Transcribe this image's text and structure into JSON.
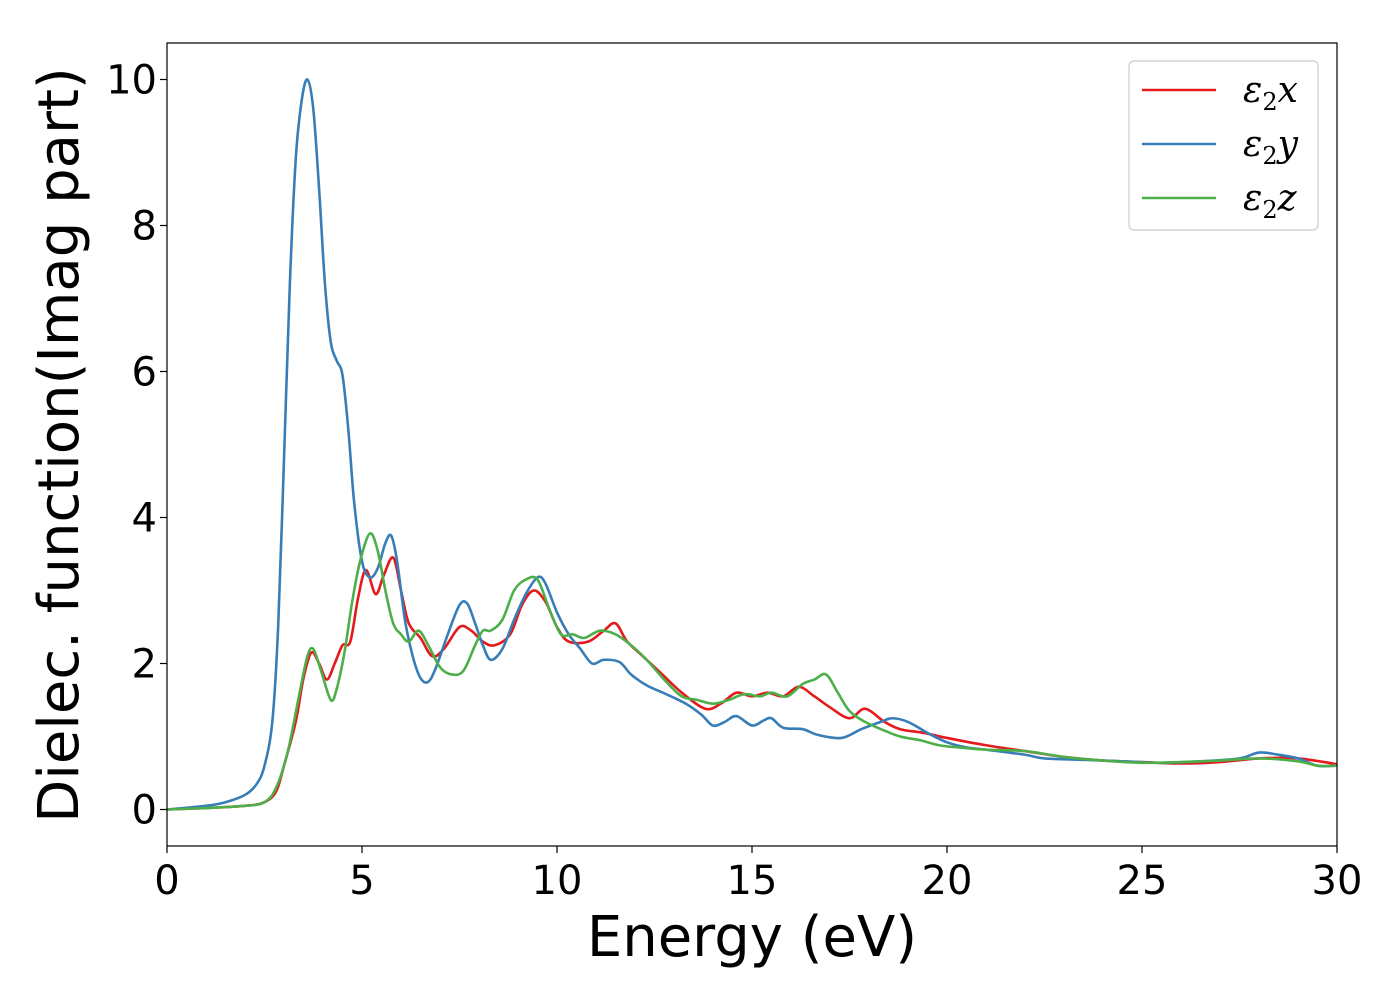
{
  "chart_data": {
    "type": "line",
    "xlabel": "Energy (eV)",
    "ylabel": "Dielec. function(Imag part)",
    "xlim": [
      0,
      30
    ],
    "ylim": [
      -0.5,
      10.5
    ],
    "xticks": [
      0,
      5,
      10,
      15,
      20,
      25,
      30
    ],
    "yticks": [
      0,
      2,
      4,
      6,
      8,
      10
    ],
    "grid": false,
    "legend_position": "top-right",
    "series": [
      {
        "name": "ε2x",
        "legend_main": "ε",
        "legend_sub": "2",
        "legend_var": "x",
        "color": "#e41a1c",
        "points": [
          [
            0,
            0
          ],
          [
            1,
            0.02
          ],
          [
            2,
            0.05
          ],
          [
            2.5,
            0.1
          ],
          [
            2.8,
            0.25
          ],
          [
            3.0,
            0.6
          ],
          [
            3.3,
            1.2
          ],
          [
            3.5,
            1.8
          ],
          [
            3.7,
            2.15
          ],
          [
            3.9,
            2.0
          ],
          [
            4.1,
            1.78
          ],
          [
            4.3,
            2.0
          ],
          [
            4.5,
            2.25
          ],
          [
            4.7,
            2.3
          ],
          [
            4.9,
            2.9
          ],
          [
            5.1,
            3.28
          ],
          [
            5.35,
            2.95
          ],
          [
            5.55,
            3.2
          ],
          [
            5.8,
            3.45
          ],
          [
            6.0,
            3.0
          ],
          [
            6.2,
            2.55
          ],
          [
            6.5,
            2.35
          ],
          [
            6.8,
            2.1
          ],
          [
            7.1,
            2.2
          ],
          [
            7.5,
            2.5
          ],
          [
            7.8,
            2.45
          ],
          [
            8.1,
            2.3
          ],
          [
            8.4,
            2.25
          ],
          [
            8.8,
            2.4
          ],
          [
            9.1,
            2.8
          ],
          [
            9.4,
            3.0
          ],
          [
            9.7,
            2.85
          ],
          [
            10.0,
            2.5
          ],
          [
            10.3,
            2.3
          ],
          [
            10.8,
            2.3
          ],
          [
            11.2,
            2.45
          ],
          [
            11.5,
            2.55
          ],
          [
            11.8,
            2.3
          ],
          [
            12.2,
            2.1
          ],
          [
            12.7,
            1.85
          ],
          [
            13.2,
            1.6
          ],
          [
            13.8,
            1.38
          ],
          [
            14.2,
            1.45
          ],
          [
            14.6,
            1.6
          ],
          [
            15.0,
            1.55
          ],
          [
            15.4,
            1.6
          ],
          [
            15.8,
            1.55
          ],
          [
            16.2,
            1.68
          ],
          [
            16.6,
            1.55
          ],
          [
            17.0,
            1.4
          ],
          [
            17.5,
            1.25
          ],
          [
            17.9,
            1.38
          ],
          [
            18.4,
            1.2
          ],
          [
            18.8,
            1.1
          ],
          [
            19.4,
            1.05
          ],
          [
            20.0,
            0.98
          ],
          [
            21,
            0.88
          ],
          [
            22,
            0.8
          ],
          [
            23,
            0.72
          ],
          [
            24,
            0.67
          ],
          [
            25,
            0.65
          ],
          [
            26,
            0.63
          ],
          [
            27,
            0.65
          ],
          [
            28,
            0.7
          ],
          [
            29,
            0.7
          ],
          [
            30,
            0.62
          ]
        ]
      },
      {
        "name": "ε2y",
        "legend_main": "ε",
        "legend_sub": "2",
        "legend_var": "y",
        "color": "#377eb8",
        "points": [
          [
            0,
            0
          ],
          [
            1,
            0.05
          ],
          [
            1.5,
            0.1
          ],
          [
            2.0,
            0.2
          ],
          [
            2.3,
            0.35
          ],
          [
            2.5,
            0.6
          ],
          [
            2.7,
            1.2
          ],
          [
            2.85,
            2.5
          ],
          [
            3.0,
            4.8
          ],
          [
            3.15,
            7.2
          ],
          [
            3.3,
            8.9
          ],
          [
            3.45,
            9.7
          ],
          [
            3.6,
            10.0
          ],
          [
            3.75,
            9.6
          ],
          [
            3.9,
            8.5
          ],
          [
            4.05,
            7.2
          ],
          [
            4.2,
            6.4
          ],
          [
            4.35,
            6.15
          ],
          [
            4.5,
            5.95
          ],
          [
            4.65,
            5.2
          ],
          [
            4.8,
            4.2
          ],
          [
            5.0,
            3.4
          ],
          [
            5.2,
            3.18
          ],
          [
            5.4,
            3.3
          ],
          [
            5.6,
            3.65
          ],
          [
            5.75,
            3.75
          ],
          [
            5.9,
            3.4
          ],
          [
            6.1,
            2.6
          ],
          [
            6.3,
            2.1
          ],
          [
            6.5,
            1.8
          ],
          [
            6.7,
            1.75
          ],
          [
            6.9,
            1.95
          ],
          [
            7.2,
            2.4
          ],
          [
            7.5,
            2.8
          ],
          [
            7.7,
            2.82
          ],
          [
            7.9,
            2.55
          ],
          [
            8.1,
            2.25
          ],
          [
            8.3,
            2.05
          ],
          [
            8.6,
            2.2
          ],
          [
            8.9,
            2.6
          ],
          [
            9.2,
            2.95
          ],
          [
            9.5,
            3.18
          ],
          [
            9.7,
            3.1
          ],
          [
            10.0,
            2.7
          ],
          [
            10.3,
            2.4
          ],
          [
            10.6,
            2.2
          ],
          [
            10.9,
            2.0
          ],
          [
            11.2,
            2.05
          ],
          [
            11.6,
            2.02
          ],
          [
            11.9,
            1.85
          ],
          [
            12.3,
            1.7
          ],
          [
            12.8,
            1.58
          ],
          [
            13.3,
            1.45
          ],
          [
            13.7,
            1.3
          ],
          [
            14.0,
            1.15
          ],
          [
            14.3,
            1.2
          ],
          [
            14.6,
            1.28
          ],
          [
            15.0,
            1.15
          ],
          [
            15.3,
            1.22
          ],
          [
            15.5,
            1.25
          ],
          [
            15.8,
            1.12
          ],
          [
            16.3,
            1.1
          ],
          [
            16.7,
            1.02
          ],
          [
            17.3,
            0.98
          ],
          [
            17.8,
            1.1
          ],
          [
            18.3,
            1.2
          ],
          [
            18.6,
            1.25
          ],
          [
            19.0,
            1.2
          ],
          [
            19.5,
            1.05
          ],
          [
            20.0,
            0.92
          ],
          [
            20.5,
            0.85
          ],
          [
            21,
            0.82
          ],
          [
            22,
            0.75
          ],
          [
            22.5,
            0.7
          ],
          [
            23.5,
            0.68
          ],
          [
            24.5,
            0.66
          ],
          [
            25.5,
            0.64
          ],
          [
            26.5,
            0.66
          ],
          [
            27.5,
            0.7
          ],
          [
            28,
            0.78
          ],
          [
            28.5,
            0.75
          ],
          [
            29,
            0.7
          ],
          [
            29.5,
            0.6
          ],
          [
            30,
            0.6
          ]
        ]
      },
      {
        "name": "ε2z",
        "legend_main": "ε",
        "legend_sub": "2",
        "legend_var": "z",
        "color": "#4daf4a",
        "points": [
          [
            0,
            0
          ],
          [
            1,
            0.02
          ],
          [
            2,
            0.05
          ],
          [
            2.5,
            0.1
          ],
          [
            2.8,
            0.3
          ],
          [
            3.1,
            0.8
          ],
          [
            3.4,
            1.6
          ],
          [
            3.6,
            2.1
          ],
          [
            3.75,
            2.2
          ],
          [
            3.95,
            1.9
          ],
          [
            4.2,
            1.5
          ],
          [
            4.35,
            1.65
          ],
          [
            4.55,
            2.15
          ],
          [
            4.75,
            2.85
          ],
          [
            4.95,
            3.4
          ],
          [
            5.2,
            3.78
          ],
          [
            5.4,
            3.55
          ],
          [
            5.6,
            3.0
          ],
          [
            5.8,
            2.55
          ],
          [
            6.0,
            2.4
          ],
          [
            6.2,
            2.3
          ],
          [
            6.45,
            2.45
          ],
          [
            6.7,
            2.25
          ],
          [
            7.0,
            1.95
          ],
          [
            7.3,
            1.85
          ],
          [
            7.6,
            1.9
          ],
          [
            7.9,
            2.25
          ],
          [
            8.1,
            2.45
          ],
          [
            8.3,
            2.45
          ],
          [
            8.6,
            2.6
          ],
          [
            8.9,
            3.0
          ],
          [
            9.2,
            3.15
          ],
          [
            9.5,
            3.15
          ],
          [
            9.8,
            2.75
          ],
          [
            10.1,
            2.4
          ],
          [
            10.4,
            2.4
          ],
          [
            10.7,
            2.35
          ],
          [
            11.1,
            2.45
          ],
          [
            11.5,
            2.4
          ],
          [
            11.9,
            2.25
          ],
          [
            12.3,
            2.05
          ],
          [
            12.8,
            1.75
          ],
          [
            13.2,
            1.55
          ],
          [
            13.6,
            1.5
          ],
          [
            14.0,
            1.45
          ],
          [
            14.4,
            1.5
          ],
          [
            14.8,
            1.58
          ],
          [
            15.2,
            1.55
          ],
          [
            15.5,
            1.6
          ],
          [
            15.9,
            1.55
          ],
          [
            16.3,
            1.72
          ],
          [
            16.6,
            1.78
          ],
          [
            16.9,
            1.85
          ],
          [
            17.2,
            1.6
          ],
          [
            17.5,
            1.35
          ],
          [
            17.9,
            1.2
          ],
          [
            18.4,
            1.08
          ],
          [
            18.8,
            1.0
          ],
          [
            19.3,
            0.95
          ],
          [
            19.8,
            0.88
          ],
          [
            20.3,
            0.85
          ],
          [
            21,
            0.82
          ],
          [
            22,
            0.8
          ],
          [
            23,
            0.72
          ],
          [
            24,
            0.67
          ],
          [
            25,
            0.64
          ],
          [
            26,
            0.65
          ],
          [
            27,
            0.67
          ],
          [
            28,
            0.7
          ],
          [
            29,
            0.66
          ],
          [
            29.5,
            0.6
          ],
          [
            30,
            0.6
          ]
        ]
      }
    ]
  }
}
